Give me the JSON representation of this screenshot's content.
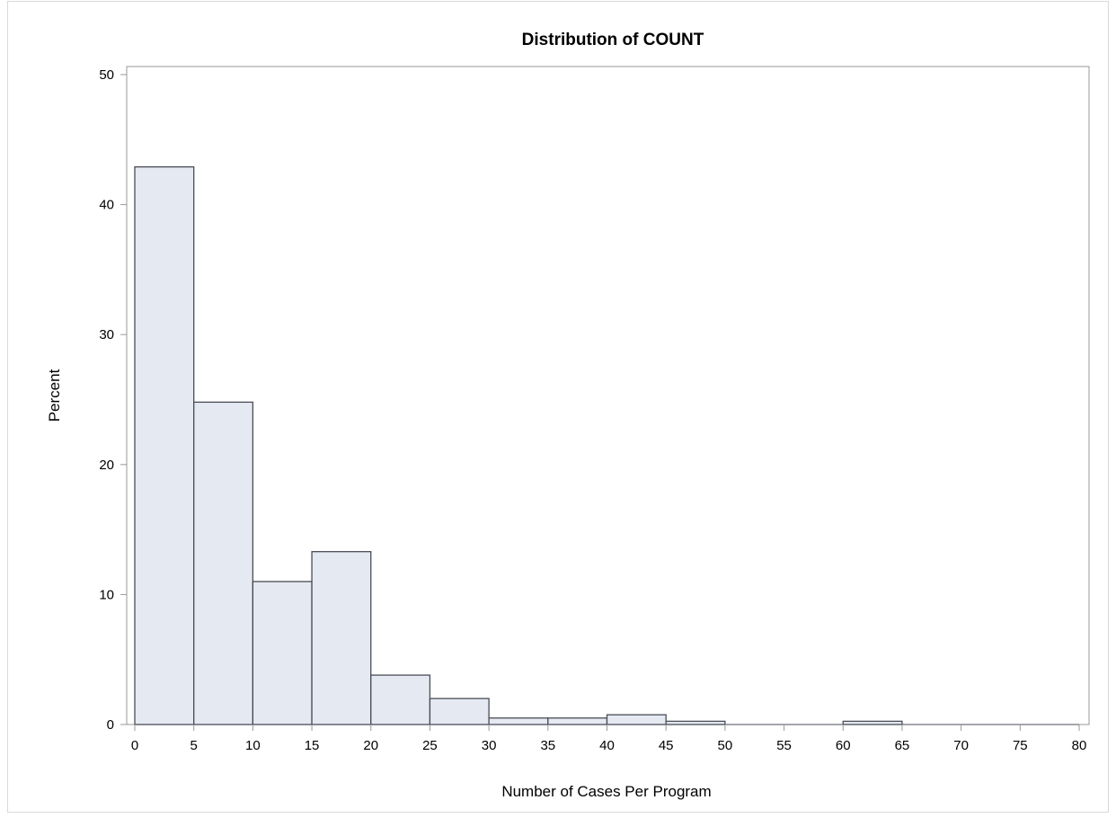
{
  "chart_data": {
    "type": "bar",
    "title": "Distribution of COUNT",
    "xlabel": "Number of Cases Per Program",
    "ylabel": "Percent",
    "bins": [
      {
        "start": 0,
        "end": 5,
        "value": 42.9
      },
      {
        "start": 5,
        "end": 10,
        "value": 24.8
      },
      {
        "start": 10,
        "end": 15,
        "value": 11.0
      },
      {
        "start": 15,
        "end": 20,
        "value": 13.3
      },
      {
        "start": 20,
        "end": 25,
        "value": 3.8
      },
      {
        "start": 25,
        "end": 30,
        "value": 2.0
      },
      {
        "start": 30,
        "end": 35,
        "value": 0.5
      },
      {
        "start": 35,
        "end": 40,
        "value": 0.5
      },
      {
        "start": 40,
        "end": 45,
        "value": 0.75
      },
      {
        "start": 45,
        "end": 50,
        "value": 0.25
      },
      {
        "start": 60,
        "end": 65,
        "value": 0.25
      }
    ],
    "xlim": [
      0,
      80
    ],
    "ylim": [
      0,
      50
    ],
    "x_ticks": [
      "0",
      "5",
      "10",
      "15",
      "20",
      "25",
      "30",
      "35",
      "40",
      "45",
      "50",
      "55",
      "60",
      "65",
      "70",
      "75",
      "80"
    ],
    "y_ticks": [
      "0",
      "10",
      "20",
      "30",
      "40",
      "50"
    ],
    "grid": false,
    "colors": {
      "bar_fill": "#e5e9f2",
      "bar_stroke": "#4a4d55",
      "axis": "#999999"
    }
  }
}
